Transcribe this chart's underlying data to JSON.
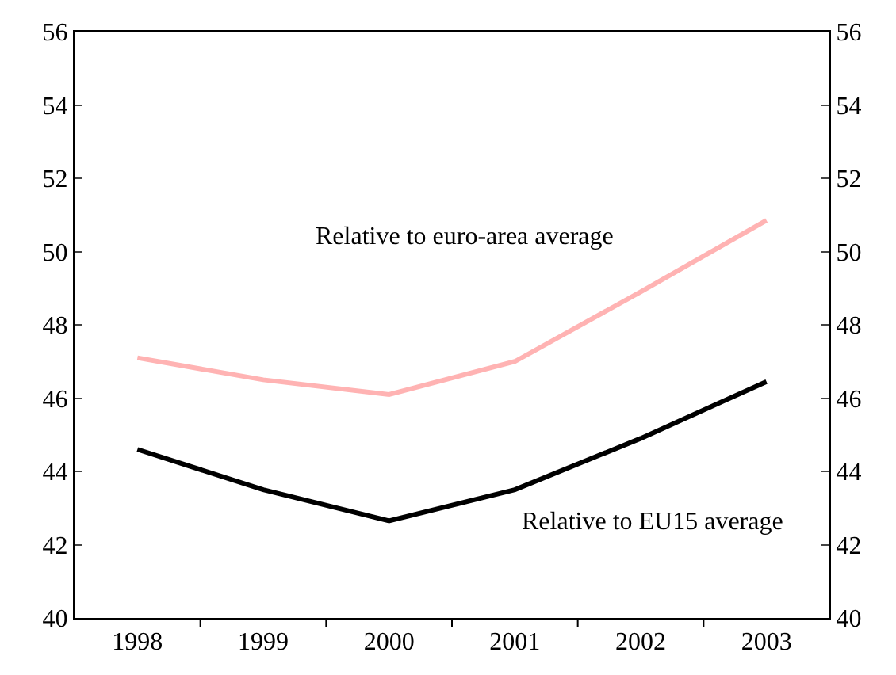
{
  "chart_data": {
    "type": "line",
    "categories": [
      "1998",
      "1999",
      "2000",
      "2001",
      "2002",
      "2003"
    ],
    "series": [
      {
        "name": "Relative to euro-area average",
        "color": "#ffb3b3",
        "values": [
          47.1,
          46.5,
          46.1,
          47.0,
          48.9,
          50.85
        ]
      },
      {
        "name": "Relative to EU15 average",
        "color": "#000000",
        "values": [
          44.6,
          43.5,
          42.65,
          43.5,
          44.9,
          46.45
        ]
      }
    ],
    "ylim": [
      40,
      56
    ],
    "yticks": [
      40,
      42,
      44,
      46,
      48,
      50,
      52,
      54,
      56
    ],
    "y2lim": [
      40,
      56
    ],
    "y2ticks": [
      40,
      42,
      44,
      46,
      48,
      50,
      52,
      54,
      56
    ],
    "grid": false,
    "legend": false,
    "marker": "none",
    "line_style": "solid"
  }
}
